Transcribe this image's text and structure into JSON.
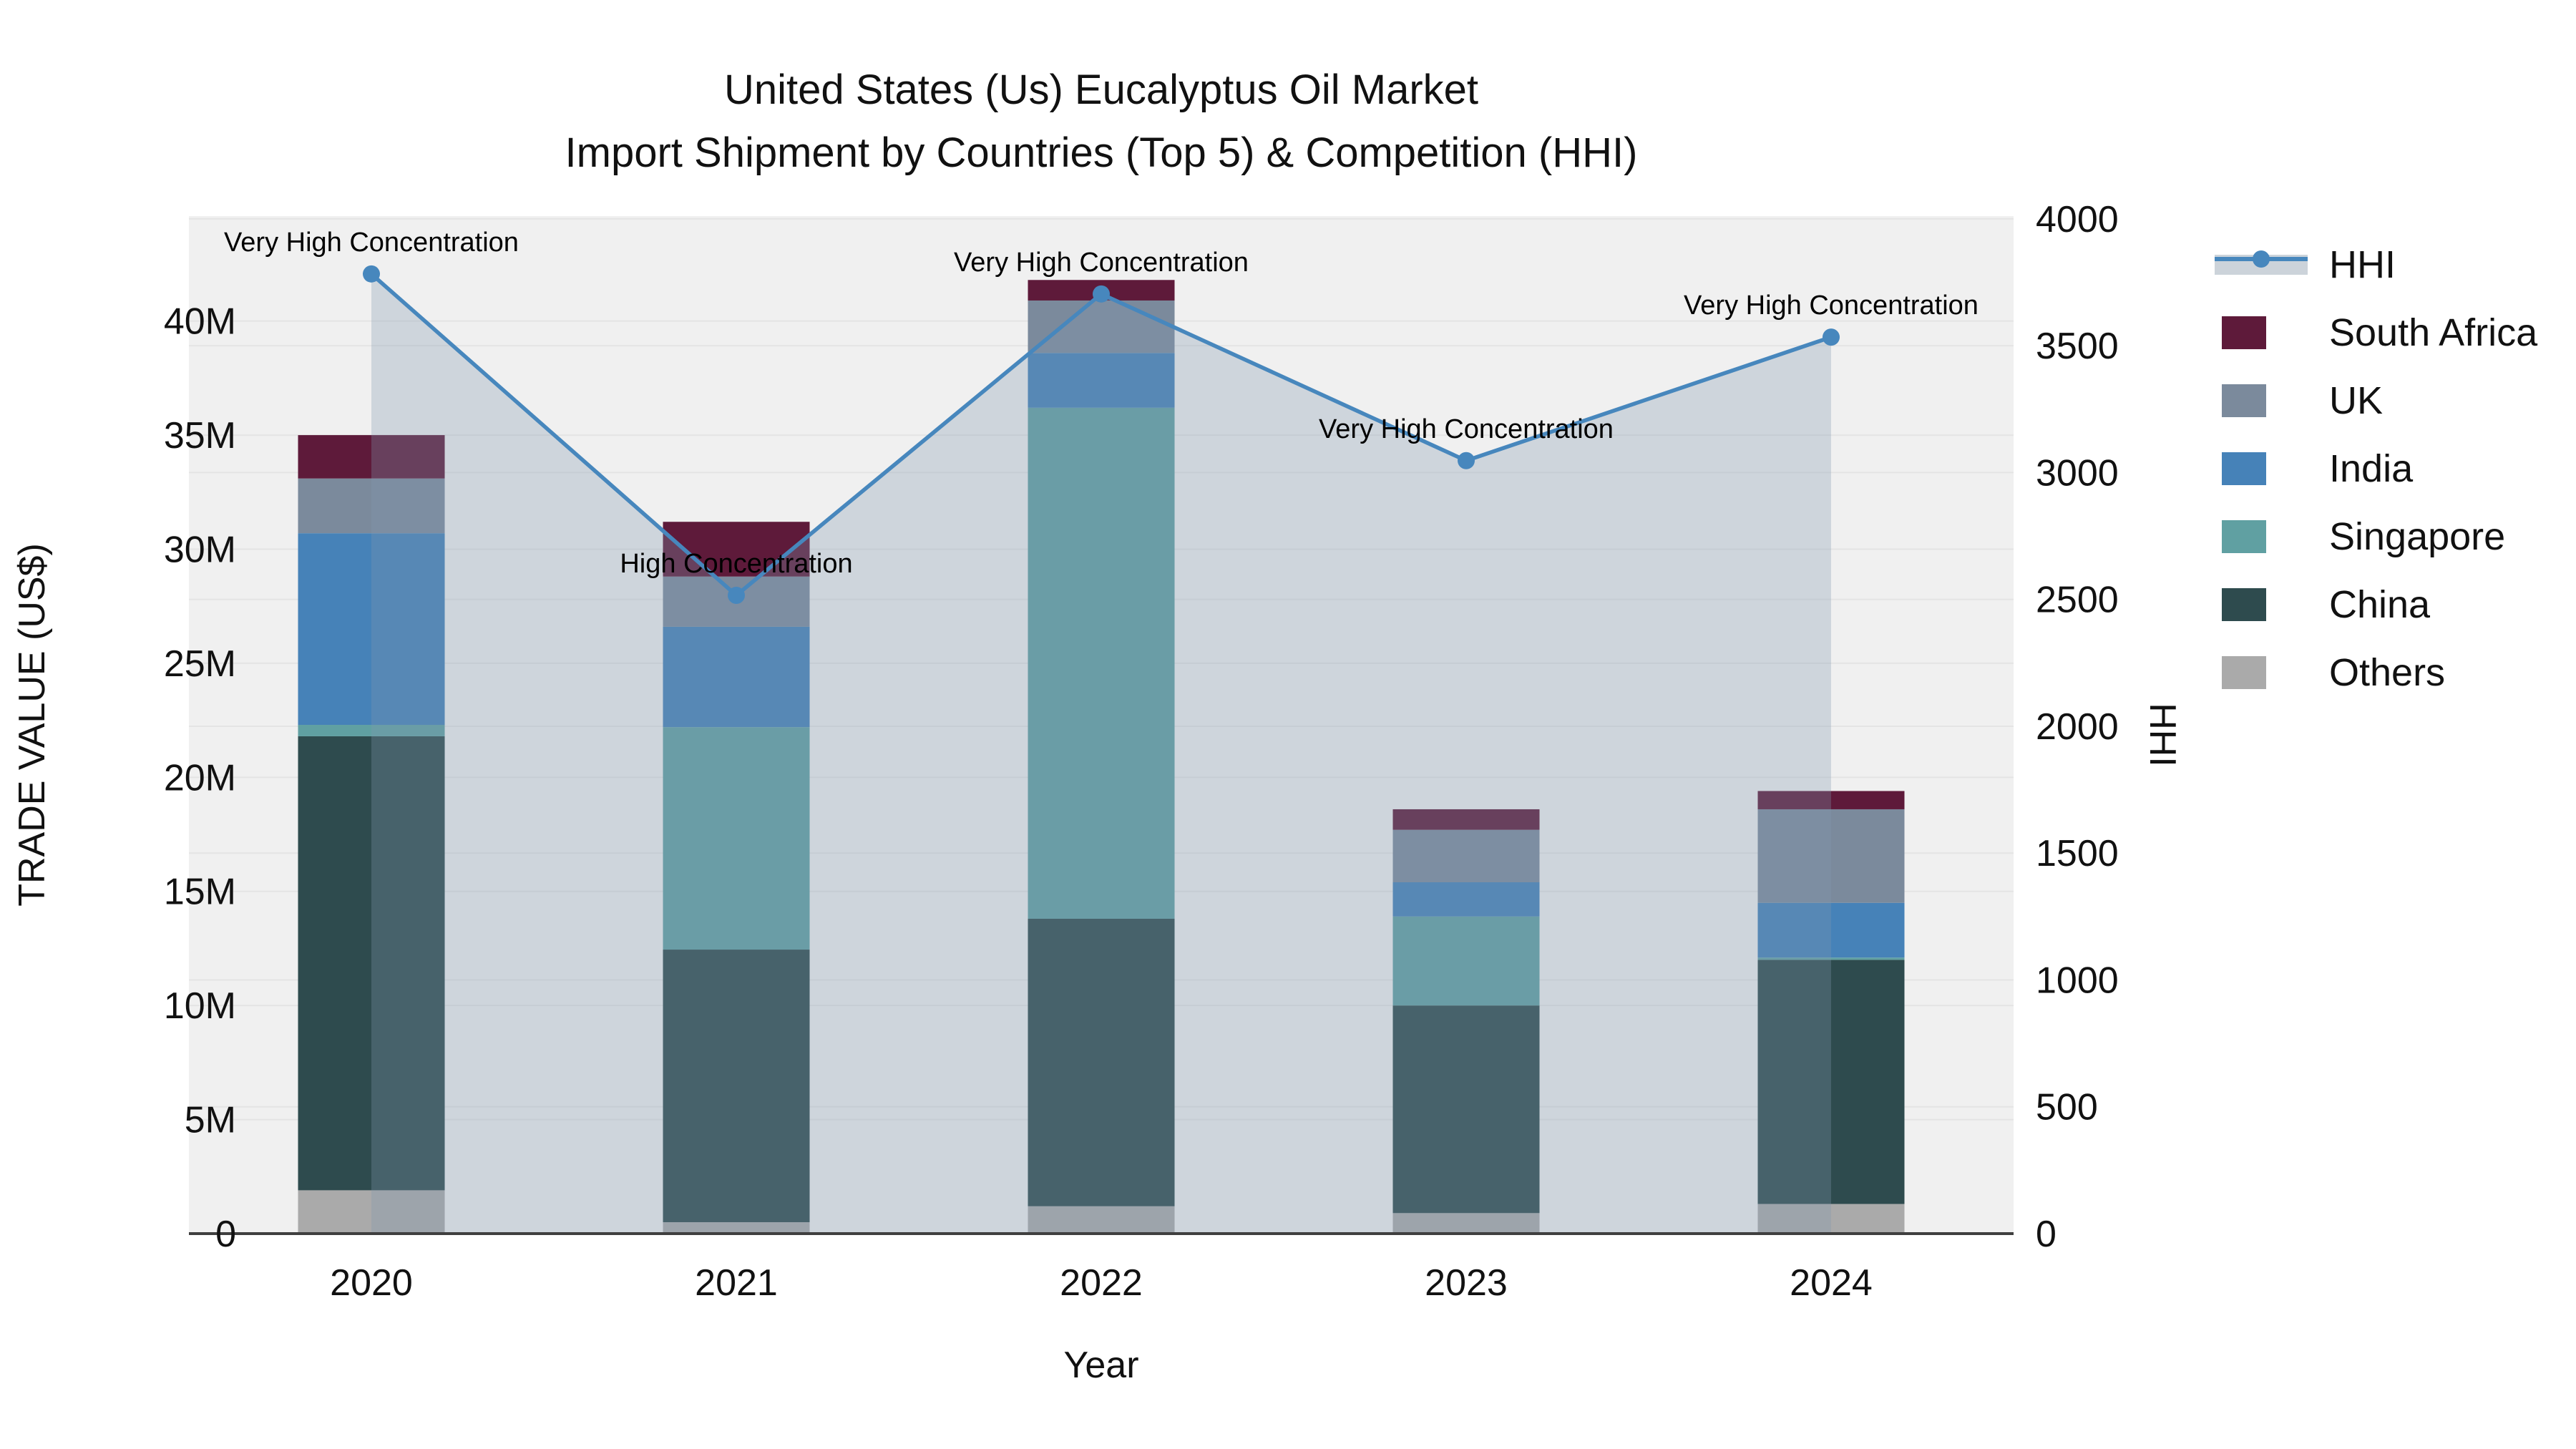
{
  "title": {
    "line1": "United States (Us) Eucalyptus Oil Market",
    "line2": "Import Shipment by Countries (Top 5) & Competition (HHI)"
  },
  "axes": {
    "x": {
      "title": "Year",
      "categories": [
        "2020",
        "2021",
        "2022",
        "2023",
        "2024"
      ]
    },
    "y_left": {
      "title": "TRADE VALUE (US$)",
      "tick_labels": [
        "0",
        "5M",
        "10M",
        "15M",
        "20M",
        "25M",
        "30M",
        "35M",
        "40M"
      ],
      "tick_values": [
        0,
        5,
        10,
        15,
        20,
        25,
        30,
        35,
        40
      ],
      "max_value": 44.6
    },
    "y_right": {
      "title": "HHI",
      "tick_labels": [
        "0",
        "500",
        "1000",
        "1500",
        "2000",
        "2500",
        "3000",
        "3500",
        "4000"
      ],
      "tick_values": [
        0,
        500,
        1000,
        1500,
        2000,
        2500,
        3000,
        3500,
        4000
      ],
      "max_value": 4011
    }
  },
  "chart_data": {
    "type": "bar+line",
    "stacked": true,
    "unit": "million US$",
    "categories": [
      "2020",
      "2021",
      "2022",
      "2023",
      "2024"
    ],
    "series": [
      {
        "name": "Others",
        "color": "#aaaaaa",
        "values": [
          1.9,
          0.5,
          1.2,
          0.9,
          1.3
        ]
      },
      {
        "name": "China",
        "color": "#2e4b4e",
        "values": [
          19.9,
          11.95,
          12.6,
          9.1,
          10.7
        ]
      },
      {
        "name": "Singapore",
        "color": "#60a0a2",
        "values": [
          0.5,
          9.75,
          22.4,
          3.9,
          0.1
        ]
      },
      {
        "name": "India",
        "color": "#4682b8",
        "values": [
          8.4,
          4.4,
          2.4,
          1.5,
          2.4
        ]
      },
      {
        "name": "UK",
        "color": "#7b8a9c",
        "values": [
          2.4,
          2.2,
          2.3,
          2.3,
          4.1
        ]
      },
      {
        "name": "South Africa",
        "color": "#5e1a3a",
        "values": [
          1.9,
          2.4,
          0.9,
          0.9,
          0.8
        ]
      }
    ],
    "totals": [
      35.0,
      31.2,
      41.8,
      18.6,
      19.4
    ],
    "line_series": {
      "name": "HHI",
      "color": "#4787bd",
      "fill_color": "rgba(128,152,176,0.30)",
      "values": [
        3783,
        2516,
        3704,
        3047,
        3534
      ]
    },
    "annotations": [
      {
        "category": "2020",
        "text": "Very High Concentration"
      },
      {
        "category": "2021",
        "text": "High Concentration"
      },
      {
        "category": "2022",
        "text": "Very High Concentration"
      },
      {
        "category": "2023",
        "text": "Very High Concentration"
      },
      {
        "category": "2024",
        "text": "Very High Concentration"
      }
    ],
    "layout": {
      "grid": true,
      "legend_position": "right",
      "plot_background": "#f0f0f0"
    }
  },
  "legend": {
    "items": [
      {
        "label": "HHI",
        "type": "line",
        "color": "#4787bd"
      },
      {
        "label": "South Africa",
        "type": "swatch",
        "color": "#5e1a3a"
      },
      {
        "label": "UK",
        "type": "swatch",
        "color": "#7b8a9c"
      },
      {
        "label": "India",
        "type": "swatch",
        "color": "#4682b8"
      },
      {
        "label": "Singapore",
        "type": "swatch",
        "color": "#60a0a2"
      },
      {
        "label": "China",
        "type": "swatch",
        "color": "#2e4b4e"
      },
      {
        "label": "Others",
        "type": "swatch",
        "color": "#aaaaaa"
      }
    ]
  },
  "colors": {
    "plot_bg": "#f0f0f0",
    "gridline": "#e4e4e4",
    "axis_line": "#3f3f3f",
    "text": "#111111"
  }
}
